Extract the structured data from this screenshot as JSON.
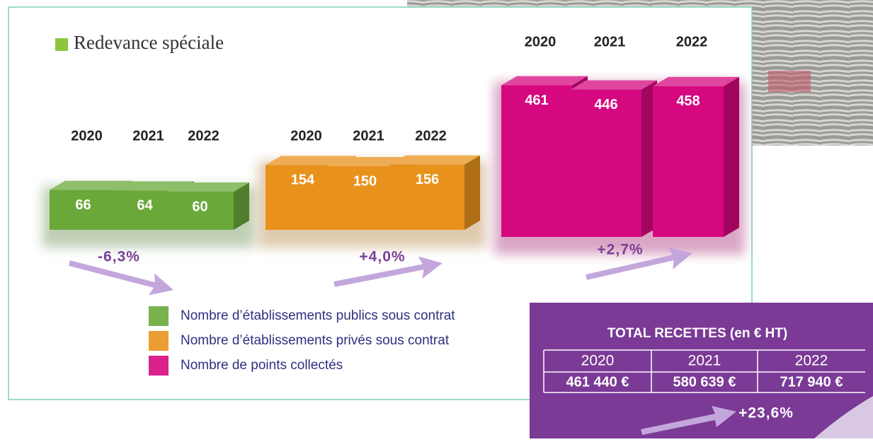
{
  "chart_data": {
    "type": "bar3d",
    "title": "Redevance spéciale",
    "categories": [
      "2020",
      "2021",
      "2022"
    ],
    "series": [
      {
        "name": "Nombre d’établissements publics sous contrat",
        "color": "#6aa83a",
        "values": [
          66,
          64,
          60
        ],
        "change": "-6,3%"
      },
      {
        "name": "Nombre d’établissements privés sous contrat",
        "color": "#e8921c",
        "values": [
          154,
          150,
          156
        ],
        "change": "+4,0%"
      },
      {
        "name": "Nombre de points collectés",
        "color": "#d6087f",
        "values": [
          461,
          446,
          458
        ],
        "change": "+2,7%"
      }
    ]
  },
  "totals": {
    "title": "TOTAL RECETTES (en € HT)",
    "years": [
      "2020",
      "2021",
      "2022"
    ],
    "amounts": [
      "461 440 €",
      "580 639 €",
      "717 940 €"
    ],
    "change": "+23,6%"
  }
}
